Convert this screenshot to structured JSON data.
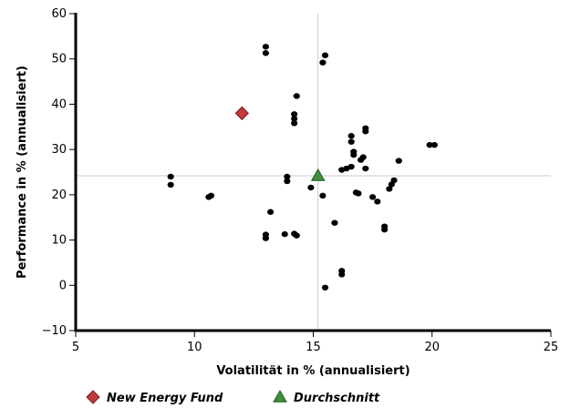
{
  "chart_data": {
    "type": "scatter",
    "xlabel": "Volatilität in % (annualisiert)",
    "ylabel": "Performance in % (annualisiert)",
    "xlim": [
      5,
      25
    ],
    "ylim": [
      -10,
      60
    ],
    "xticks": [
      5,
      10,
      15,
      20,
      25
    ],
    "yticks": [
      -10,
      0,
      10,
      20,
      30,
      40,
      50,
      60
    ],
    "grid": false,
    "reference_lines": {
      "x": 15.2,
      "y": 24.2,
      "color": "#c8c8c8"
    },
    "legend_position": "bottom-left",
    "series": [
      {
        "marker": "circle",
        "color": "#000000",
        "points": [
          [
            9.0,
            24.0
          ],
          [
            9.0,
            22.2
          ],
          [
            10.6,
            19.5
          ],
          [
            10.7,
            19.8
          ],
          [
            13.0,
            52.7
          ],
          [
            13.0,
            51.3
          ],
          [
            13.0,
            11.2
          ],
          [
            13.0,
            10.4
          ],
          [
            13.2,
            16.2
          ],
          [
            13.8,
            11.3
          ],
          [
            13.9,
            24.0
          ],
          [
            13.9,
            23.0
          ],
          [
            14.2,
            11.4
          ],
          [
            14.3,
            11.0
          ],
          [
            14.2,
            37.8
          ],
          [
            14.2,
            36.8
          ],
          [
            14.2,
            35.8
          ],
          [
            14.3,
            41.8
          ],
          [
            14.9,
            21.6
          ],
          [
            15.4,
            49.2
          ],
          [
            15.5,
            50.8
          ],
          [
            15.4,
            19.8
          ],
          [
            15.5,
            -0.5
          ],
          [
            15.9,
            13.8
          ],
          [
            16.2,
            3.2
          ],
          [
            16.2,
            2.4
          ],
          [
            16.2,
            25.5
          ],
          [
            16.4,
            25.8
          ],
          [
            16.6,
            26.2
          ],
          [
            16.6,
            33.0
          ],
          [
            16.6,
            31.7
          ],
          [
            16.7,
            29.5
          ],
          [
            16.7,
            28.8
          ],
          [
            16.8,
            20.5
          ],
          [
            16.9,
            20.3
          ],
          [
            17.0,
            27.7
          ],
          [
            17.1,
            28.3
          ],
          [
            17.2,
            34.7
          ],
          [
            17.2,
            34.0
          ],
          [
            17.2,
            25.8
          ],
          [
            17.5,
            19.5
          ],
          [
            17.7,
            18.5
          ],
          [
            18.0,
            13.0
          ],
          [
            18.0,
            12.3
          ],
          [
            18.2,
            21.3
          ],
          [
            18.3,
            22.3
          ],
          [
            18.4,
            23.2
          ],
          [
            18.6,
            27.5
          ],
          [
            19.9,
            31.0
          ],
          [
            20.1,
            31.0
          ]
        ]
      },
      {
        "name": "New Energy Fund",
        "marker": "diamond",
        "color": "#c0393b",
        "points": [
          [
            12.0,
            38.0
          ]
        ]
      },
      {
        "name": "Durchschnitt",
        "marker": "triangle",
        "color": "#3f8f3f",
        "points": [
          [
            15.2,
            24.2
          ]
        ]
      }
    ]
  }
}
